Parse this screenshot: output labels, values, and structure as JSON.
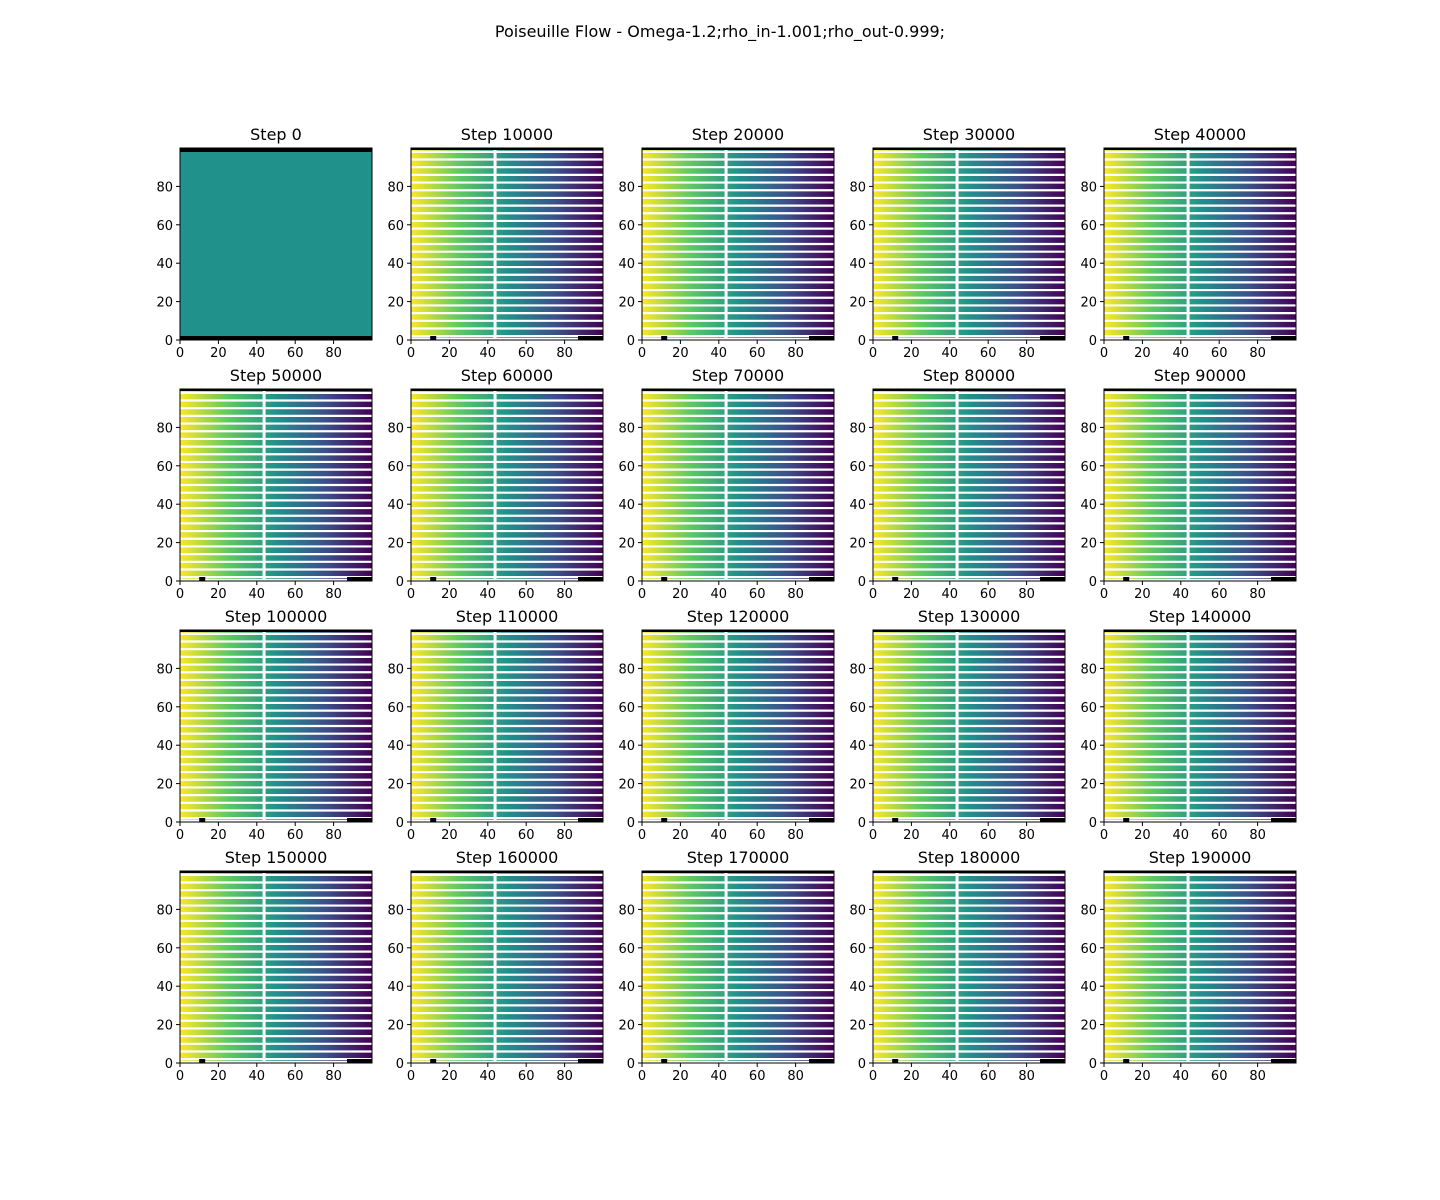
{
  "figure": {
    "title": "Poiseuille Flow - Omega-1.2;rho_in-1.001;rho_out-0.999;"
  },
  "chart_data": {
    "type": "heatmap",
    "layout": {
      "rows": 4,
      "cols": 5
    },
    "xlim": [
      0,
      100
    ],
    "ylim": [
      0,
      100
    ],
    "xticks": [
      0,
      20,
      40,
      60,
      80
    ],
    "yticks": [
      0,
      20,
      40,
      60,
      80
    ],
    "colormap": "viridis",
    "grid": false,
    "panels": [
      {
        "title": "Step 0",
        "step": 0,
        "field": "uniform"
      },
      {
        "title": "Step 10000",
        "step": 10000,
        "field": "streamlines-gradient"
      },
      {
        "title": "Step 20000",
        "step": 20000,
        "field": "streamlines-gradient"
      },
      {
        "title": "Step 30000",
        "step": 30000,
        "field": "streamlines-gradient"
      },
      {
        "title": "Step 40000",
        "step": 40000,
        "field": "streamlines-gradient"
      },
      {
        "title": "Step 50000",
        "step": 50000,
        "field": "streamlines-gradient"
      },
      {
        "title": "Step 60000",
        "step": 60000,
        "field": "streamlines-gradient"
      },
      {
        "title": "Step 70000",
        "step": 70000,
        "field": "streamlines-gradient"
      },
      {
        "title": "Step 80000",
        "step": 80000,
        "field": "streamlines-gradient"
      },
      {
        "title": "Step 90000",
        "step": 90000,
        "field": "streamlines-gradient"
      },
      {
        "title": "Step 100000",
        "step": 100000,
        "field": "streamlines-gradient"
      },
      {
        "title": "Step 110000",
        "step": 110000,
        "field": "streamlines-gradient"
      },
      {
        "title": "Step 120000",
        "step": 120000,
        "field": "streamlines-gradient"
      },
      {
        "title": "Step 130000",
        "step": 130000,
        "field": "streamlines-gradient"
      },
      {
        "title": "Step 140000",
        "step": 140000,
        "field": "streamlines-gradient"
      },
      {
        "title": "Step 150000",
        "step": 150000,
        "field": "streamlines-gradient"
      },
      {
        "title": "Step 160000",
        "step": 160000,
        "field": "streamlines-gradient"
      },
      {
        "title": "Step 170000",
        "step": 170000,
        "field": "streamlines-gradient"
      },
      {
        "title": "Step 180000",
        "step": 180000,
        "field": "streamlines-gradient"
      },
      {
        "title": "Step 190000",
        "step": 190000,
        "field": "streamlines-gradient"
      }
    ],
    "colors": {
      "uniform": "#21918c",
      "gradient_stops": [
        "#fde725",
        "#5ec962",
        "#21918c",
        "#3b528b",
        "#440154"
      ],
      "axis": "#000000",
      "background": "#ffffff"
    }
  }
}
